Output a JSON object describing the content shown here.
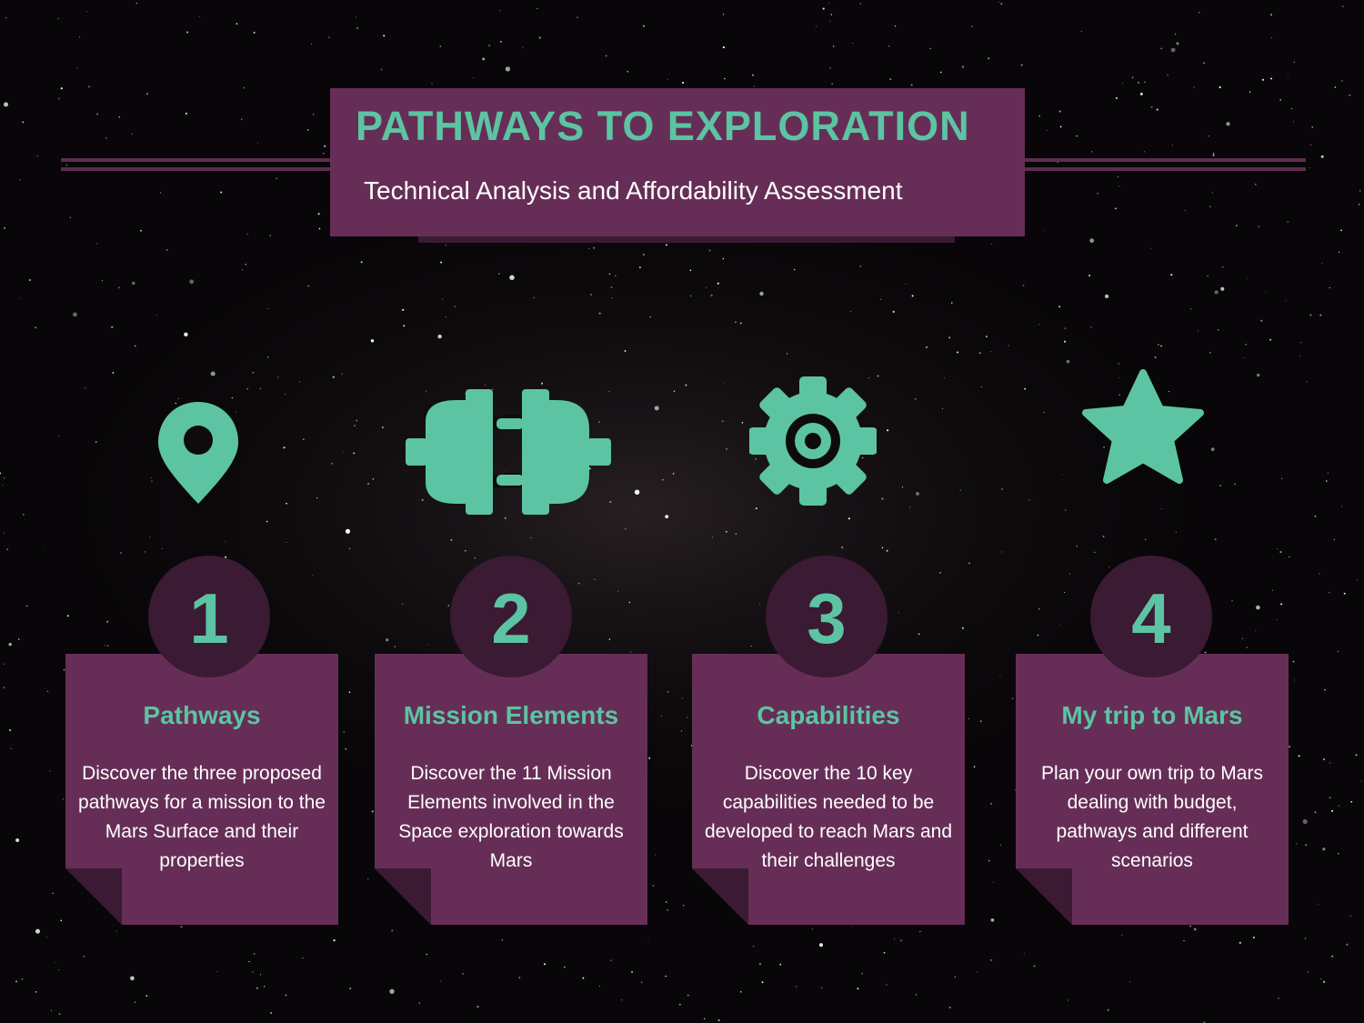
{
  "header": {
    "title": "PATHWAYS TO EXPLORATION",
    "subtitle": "Technical Analysis and Affordability Assessment"
  },
  "colors": {
    "accent": "#5cc4a2",
    "panel": "#662e57",
    "circle": "#3b1a33",
    "background": "#080608"
  },
  "steps": [
    {
      "number": "1",
      "icon": "map-pin-icon",
      "title": "Pathways",
      "description": "Discover the three proposed pathways for a mission to the Mars Surface and their properties"
    },
    {
      "number": "2",
      "icon": "plug-connector-icon",
      "title": "Mission Elements",
      "description": "Discover the 11 Mission Elements involved in the Space exploration towards Mars"
    },
    {
      "number": "3",
      "icon": "gear-icon",
      "title": "Capabilities",
      "description": "Discover the 10 key capabilities needed to be developed to reach Mars and their challenges"
    },
    {
      "number": "4",
      "icon": "star-icon",
      "title": "My trip to Mars",
      "description": "Plan your own trip to Mars dealing with budget, pathways and different scenarios"
    }
  ]
}
